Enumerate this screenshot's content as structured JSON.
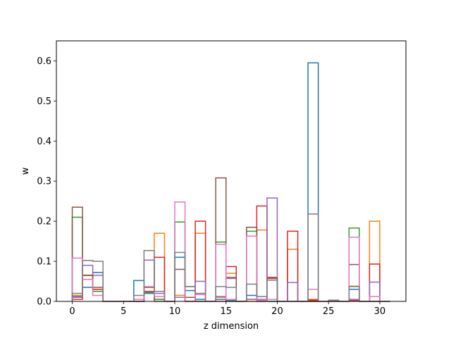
{
  "chart_data": {
    "type": "step-histogram",
    "xlabel": "z dimension",
    "ylabel": "w",
    "xlim": [
      -1.55,
      32.55
    ],
    "ylim": [
      0,
      0.65
    ],
    "xticks": [
      0,
      5,
      10,
      15,
      20,
      25,
      30
    ],
    "xtick_labels": [
      "0",
      "5",
      "10",
      "15",
      "20",
      "25",
      "30"
    ],
    "yticks": [
      0.0,
      0.1,
      0.2,
      0.3,
      0.4,
      0.5,
      0.6
    ],
    "ytick_labels": [
      "0.0",
      "0.1",
      "0.2",
      "0.3",
      "0.4",
      "0.5",
      "0.6"
    ],
    "bin_edges": [
      0,
      1,
      2,
      3,
      4,
      5,
      6,
      7,
      8,
      9,
      10,
      11,
      12,
      13,
      14,
      15,
      16,
      17,
      18,
      19,
      20,
      21,
      22,
      23,
      24,
      25,
      26,
      27,
      28,
      29,
      30,
      31
    ],
    "series": [
      {
        "color": "#1f77b4",
        "values": [
          0.012,
          0.035,
          0.072,
          0.0,
          0.0,
          0.0,
          0.052,
          0.02,
          0.005,
          0.0,
          0.11,
          0.027,
          0.005,
          0.0,
          0.005,
          0.002,
          0.0,
          0.015,
          0.002,
          0.0,
          0.0,
          0.0,
          0.0,
          0.595,
          0.0,
          0.0,
          0.0,
          0.03,
          0.0,
          0.0,
          0.0
        ]
      },
      {
        "color": "#ff7f0e",
        "values": [
          0.015,
          0.065,
          0.03,
          0.0,
          0.0,
          0.0,
          0.0,
          0.025,
          0.17,
          0.0,
          0.015,
          0.0,
          0.17,
          0.0,
          0.01,
          0.07,
          0.0,
          0.0,
          0.178,
          0.06,
          0.0,
          0.13,
          0.0,
          0.005,
          0.0,
          0.0,
          0.0,
          0.038,
          0.0,
          0.2,
          0.0
        ]
      },
      {
        "color": "#2ca02c",
        "values": [
          0.21,
          0.065,
          0.025,
          0.0,
          0.0,
          0.0,
          0.0,
          0.022,
          0.005,
          0.0,
          0.198,
          0.0,
          0.0,
          0.0,
          0.148,
          0.0,
          0.0,
          0.175,
          0.0,
          0.0,
          0.0,
          0.0,
          0.0,
          0.0,
          0.0,
          0.0,
          0.0,
          0.183,
          0.0,
          0.0,
          0.0
        ]
      },
      {
        "color": "#d62728",
        "values": [
          0.005,
          0.065,
          0.03,
          0.0,
          0.0,
          0.0,
          0.0,
          0.025,
          0.11,
          0.0,
          0.01,
          0.0,
          0.2,
          0.0,
          0.0,
          0.087,
          0.0,
          0.005,
          0.238,
          0.06,
          0.0,
          0.175,
          0.0,
          0.003,
          0.0,
          0.0,
          0.0,
          0.002,
          0.0,
          0.093,
          0.0
        ]
      },
      {
        "color": "#9467bd",
        "values": [
          0.01,
          0.09,
          0.065,
          0.0,
          0.0,
          0.0,
          0.0,
          0.103,
          0.02,
          0.0,
          0.01,
          0.037,
          0.05,
          0.0,
          0.012,
          0.057,
          0.0,
          0.005,
          0.005,
          0.258,
          0.0,
          0.047,
          0.0,
          0.0,
          0.0,
          0.0,
          0.0,
          0.005,
          0.0,
          0.048,
          0.0
        ]
      },
      {
        "color": "#8c564b",
        "values": [
          0.235,
          0.065,
          0.035,
          0.0,
          0.0,
          0.0,
          0.0,
          0.035,
          0.0,
          0.0,
          0.08,
          0.01,
          0.0,
          0.0,
          0.308,
          0.06,
          0.0,
          0.185,
          0.0,
          0.057,
          0.0,
          0.0,
          0.0,
          0.0,
          0.0,
          0.0,
          0.0,
          0.092,
          0.0,
          0.0,
          0.0
        ]
      },
      {
        "color": "#e377c2",
        "values": [
          0.108,
          0.055,
          0.015,
          0.0,
          0.0,
          0.0,
          0.005,
          0.037,
          0.012,
          0.0,
          0.248,
          0.0,
          0.017,
          0.0,
          0.142,
          0.005,
          0.0,
          0.163,
          0.002,
          0.005,
          0.0,
          0.0,
          0.0,
          0.03,
          0.0,
          0.0,
          0.0,
          0.16,
          0.0,
          0.012,
          0.0
        ]
      },
      {
        "color": "#7f7f7f",
        "values": [
          0.02,
          0.102,
          0.1,
          0.0,
          0.0,
          0.0,
          0.015,
          0.127,
          0.025,
          0.0,
          0.122,
          0.037,
          0.02,
          0.0,
          0.037,
          0.035,
          0.0,
          0.043,
          0.012,
          0.053,
          0.0,
          0.0,
          0.0,
          0.218,
          0.0,
          0.003,
          0.0,
          0.037,
          0.0,
          0.0,
          0.0
        ]
      }
    ]
  }
}
